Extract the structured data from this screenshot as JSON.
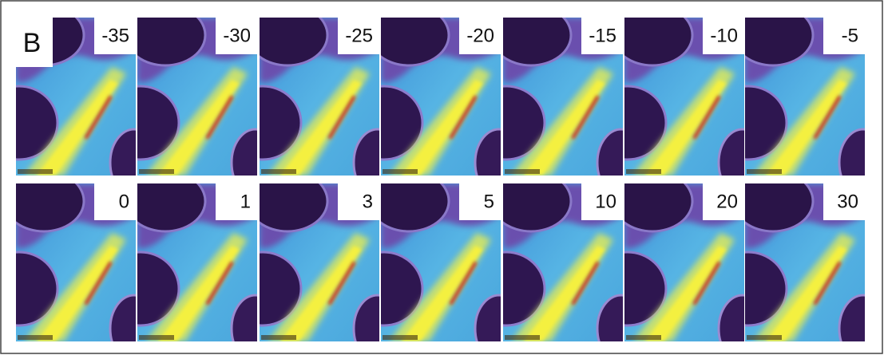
{
  "panel_label": "B",
  "rows": [
    [
      "-35",
      "-30",
      "-25",
      "-20",
      "-15",
      "-10",
      "-5"
    ],
    [
      "0",
      "1",
      "3",
      "5",
      "10",
      "20",
      "30"
    ]
  ]
}
